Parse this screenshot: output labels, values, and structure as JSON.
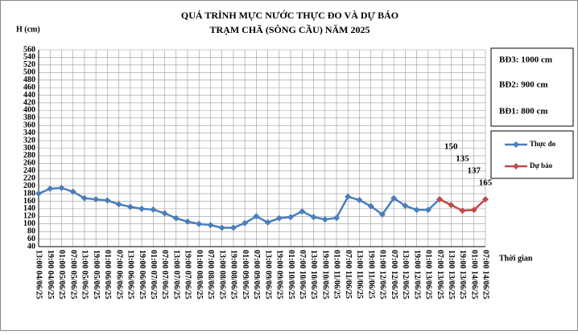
{
  "chart_data": {
    "type": "line",
    "title": "QUÁ TRÌNH MỰC NƯỚC THỰC ĐO VÀ DỰ BÁO",
    "subtitle": "TRẠM CHÃ (SÔNG CẦU) NĂM 2025",
    "y_label": "H (cm)",
    "x_label": "Thời gian",
    "alert_levels": [
      "BĐ3: 1000 cm",
      "BĐ2: 900 cm",
      "BĐ1: 800 cm"
    ],
    "categories": [
      "13:00 04/06/25",
      "19:00 04/06/25",
      "01:00 05/06/25",
      "07:00 05/06/25",
      "13:00 05/06/25",
      "19:00 05/06/25",
      "01:00 06/06/25",
      "07:00 06/06/25",
      "13:00 06/06/25",
      "19:00 06/06/25",
      "01:00 07/06/25",
      "07:00 07/06/25",
      "13:00 07/06/25",
      "19:00 07/06/25",
      "01:00 08/06/25",
      "07:00 08/06/25",
      "13:00 08/06/25",
      "19:00 08/06/25",
      "01:00 09/06/25",
      "07:00 09/06/25",
      "13:00 09/06/25",
      "19:00 09/06/25",
      "01:00 10/06/25",
      "07:00 10/06/25",
      "13:00 10/06/25",
      "19:00 10/06/25",
      "01:00 11/06/25",
      "07:00 11/06/25",
      "13:00 11/06/25",
      "19:00 11/06/25",
      "01:00 12/06/25",
      "07:00 12/06/25",
      "13:00 12/06/25",
      "19:00 12/06/25",
      "01:00 13/06/25",
      "07:00 13/06/25",
      "13:00 13/06/25",
      "19:00 13/06/25",
      "01:00 14/06/25",
      "07:00 14/06/25"
    ],
    "series": [
      {
        "name": "Thực đo",
        "color": "#4a7ebb",
        "values": [
          180,
          193,
          195,
          185,
          168,
          165,
          162,
          152,
          145,
          140,
          138,
          128,
          115,
          106,
          100,
          97,
          90,
          90,
          102,
          120,
          104,
          115,
          118,
          133,
          118,
          112,
          116,
          172,
          163,
          147,
          125,
          168,
          148,
          137,
          137,
          165,
          null,
          null,
          null,
          null
        ]
      },
      {
        "name": "Dự báo",
        "color": "#be4b48",
        "values": [
          null,
          null,
          null,
          null,
          null,
          null,
          null,
          null,
          null,
          null,
          null,
          null,
          null,
          null,
          null,
          null,
          null,
          null,
          null,
          null,
          null,
          null,
          null,
          null,
          null,
          null,
          null,
          null,
          null,
          null,
          null,
          null,
          null,
          null,
          null,
          165,
          150,
          135,
          137,
          165
        ]
      }
    ],
    "ylim": [
      40,
      560
    ],
    "yticks": [
      40,
      60,
      80,
      100,
      120,
      140,
      160,
      180,
      200,
      220,
      240,
      260,
      280,
      300,
      320,
      340,
      360,
      380,
      400,
      420,
      440,
      460,
      480,
      500,
      520,
      540,
      560
    ],
    "grid": true
  }
}
